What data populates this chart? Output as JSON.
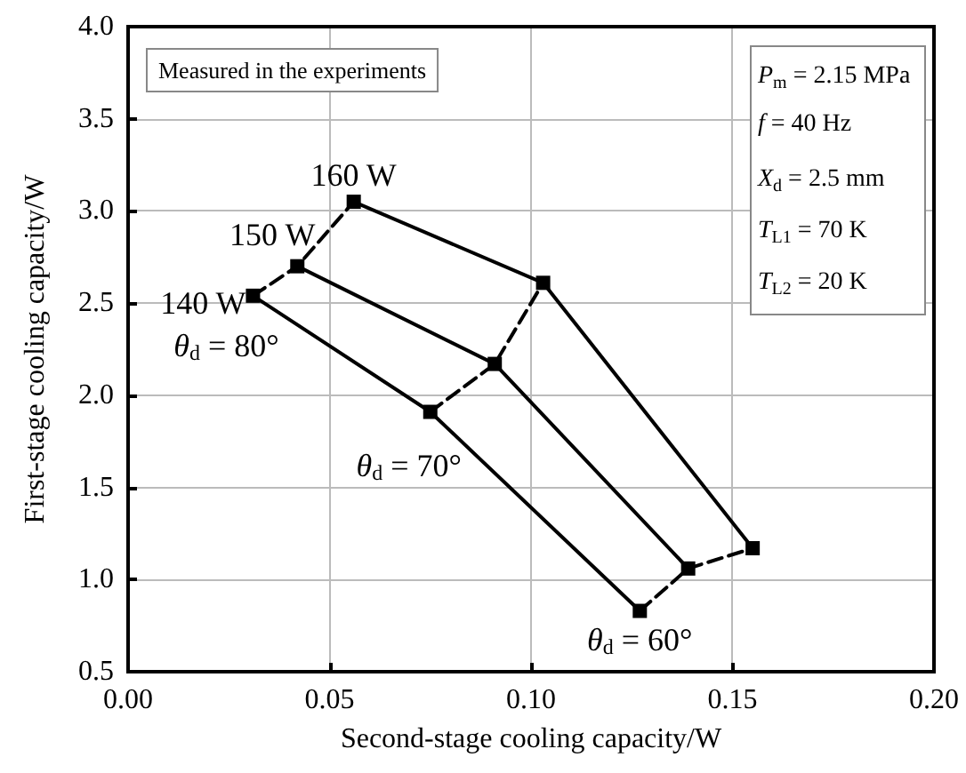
{
  "chart_data": {
    "type": "line",
    "xlabel": "Second-stage cooling capacity/W",
    "ylabel": "First-stage cooling capacity/W",
    "xlim": [
      0,
      0.2
    ],
    "xticks": [
      {
        "value": 0,
        "label": "0.00"
      },
      {
        "value": 0.05,
        "label": "0.05"
      },
      {
        "value": 0.1,
        "label": "0.10"
      },
      {
        "value": 0.15,
        "label": "0.15"
      },
      {
        "value": 0.2,
        "label": "0.20"
      }
    ],
    "ylim": [
      0.5,
      4
    ],
    "yticks": [
      {
        "value": 0.5,
        "label": "0.5"
      },
      {
        "value": 1,
        "label": "1.0"
      },
      {
        "value": 1.5,
        "label": "1.5"
      },
      {
        "value": 2,
        "label": "2.0"
      },
      {
        "value": 2.5,
        "label": "2.5"
      },
      {
        "value": 3,
        "label": "3.0"
      },
      {
        "value": 3.5,
        "label": "3.5"
      },
      {
        "value": 4,
        "label": "4.0"
      }
    ],
    "grid": true,
    "series": [
      {
        "color": "#000000",
        "marker": "square",
        "line_style": "solid",
        "x": [
          0.031,
          0.075,
          0.127
        ],
        "values": [
          2.54,
          1.91,
          0.83
        ]
      },
      {
        "color": "#000000",
        "marker": "square",
        "line_style": "solid",
        "x": [
          0.042,
          0.091,
          0.139
        ],
        "values": [
          2.7,
          2.17,
          1.06
        ]
      },
      {
        "color": "#000000",
        "marker": "square",
        "line_style": "solid",
        "x": [
          0.056,
          0.103,
          0.155
        ],
        "values": [
          3.05,
          2.61,
          1.17
        ]
      },
      {
        "color": "#000000",
        "line_style": "dashed",
        "x": [
          0.031,
          0.042,
          0.056
        ],
        "values": [
          2.54,
          2.7,
          3.05
        ]
      },
      {
        "color": "#000000",
        "line_style": "dashed",
        "x": [
          0.075,
          0.091,
          0.103
        ],
        "values": [
          1.91,
          2.17,
          2.61
        ]
      },
      {
        "color": "#000000",
        "line_style": "dashed",
        "x": [
          0.127,
          0.139,
          0.155
        ],
        "values": [
          0.83,
          1.06,
          1.17
        ]
      }
    ],
    "annotations": [
      "Measured in the experiments",
      "P$_{m}$ = 2.15 MPa",
      "f = 40 Hz",
      "X$_{d}$ = 2.5 mm",
      "T$_{L1}$ = 70 K",
      "T$_{L2}$ = 20 K",
      {
        "text": "160 W",
        "x": 0.056,
        "y": 3.05
      },
      {
        "text": "150 W",
        "x": 0.042,
        "y": 2.7
      },
      {
        "text": "140 W",
        "x": 0.031,
        "y": 2.54
      },
      {
        "text": "θ$_{d}$ = 80°",
        "x": 0.031,
        "y": 2.54
      },
      {
        "text": "θ$_{d}$ = 70°",
        "x": 0.075,
        "y": 1.91
      },
      {
        "text": "θ$_{d}$ = 60°",
        "x": 0.127,
        "y": 0.83
      }
    ]
  }
}
